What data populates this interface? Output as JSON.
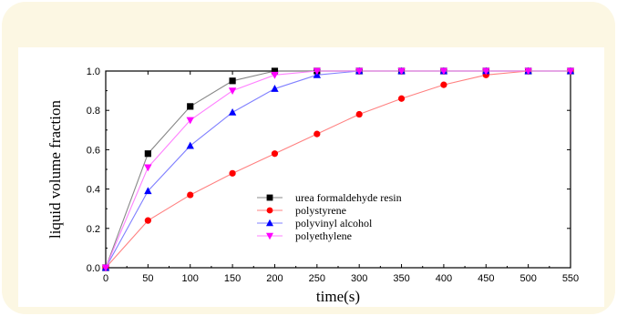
{
  "chart_data": {
    "type": "line",
    "title": "",
    "xlabel": "time(s)",
    "ylabel": "liquid volume fraction",
    "xlim": [
      0,
      550
    ],
    "ylim": [
      0,
      1.0
    ],
    "x_ticks": [
      0,
      50,
      100,
      150,
      200,
      250,
      300,
      350,
      400,
      450,
      500,
      550
    ],
    "y_ticks": [
      0.0,
      0.2,
      0.4,
      0.6,
      0.8,
      1.0
    ],
    "x_tick_labels": [
      "0",
      "50",
      "100",
      "150",
      "200",
      "250",
      "300",
      "350",
      "400",
      "450",
      "500",
      "550"
    ],
    "y_tick_labels": [
      "0.0",
      "0.2",
      "0.4",
      "0.6",
      "0.8",
      "1.0"
    ],
    "grid": false,
    "legend_position": "center",
    "series": [
      {
        "name": "urea formaldehyde resin",
        "color": "#000000",
        "line_color": "#888888",
        "marker": "square",
        "x": [
          0,
          50,
          100,
          150,
          200,
          250,
          300,
          350,
          400,
          450,
          500,
          550
        ],
        "y": [
          0.0,
          0.58,
          0.82,
          0.95,
          1.0,
          1.0,
          1.0,
          1.0,
          1.0,
          1.0,
          1.0,
          1.0
        ]
      },
      {
        "name": "polystyrene",
        "color": "#ff0000",
        "line_color": "#ff8080",
        "marker": "circle",
        "x": [
          0,
          50,
          100,
          150,
          200,
          250,
          300,
          350,
          400,
          450,
          500,
          550
        ],
        "y": [
          0.0,
          0.24,
          0.37,
          0.48,
          0.58,
          0.68,
          0.78,
          0.86,
          0.93,
          0.98,
          1.0,
          1.0
        ]
      },
      {
        "name": "polyvinyl alcohol",
        "color": "#0000ff",
        "line_color": "#8080ff",
        "marker": "triangle-up",
        "x": [
          0,
          50,
          100,
          150,
          200,
          250,
          300,
          350,
          400,
          450,
          500,
          550
        ],
        "y": [
          0.0,
          0.39,
          0.62,
          0.79,
          0.91,
          0.98,
          1.0,
          1.0,
          1.0,
          1.0,
          1.0,
          1.0
        ]
      },
      {
        "name": "polyethylene",
        "color": "#ff00ff",
        "line_color": "#ff80ff",
        "marker": "triangle-down",
        "x": [
          0,
          50,
          100,
          150,
          200,
          250,
          300,
          350,
          400,
          450,
          500,
          550
        ],
        "y": [
          0.0,
          0.51,
          0.75,
          0.9,
          0.98,
          1.0,
          1.0,
          1.0,
          1.0,
          1.0,
          1.0,
          1.0
        ]
      }
    ]
  }
}
